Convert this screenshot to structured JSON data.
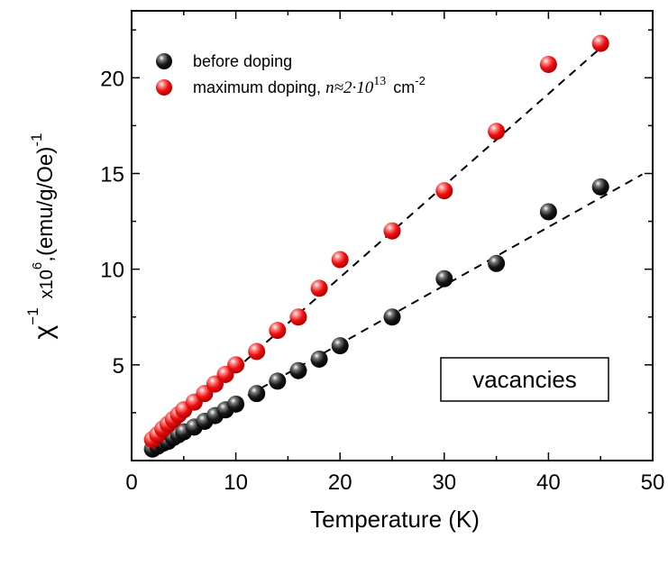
{
  "chart_data": {
    "type": "scatter",
    "xlabel": "Temperature (K)",
    "ylabel": {
      "chi": "χ",
      "chi_exp": "−1",
      "multiplier": "x10",
      "multiplier_exp": "6",
      "units": ",(emu/g/Oe)",
      "units_exp": "-1"
    },
    "xlim": [
      0,
      50
    ],
    "ylim": [
      0,
      23.5
    ],
    "xticks": [
      0,
      10,
      20,
      30,
      40,
      50
    ],
    "yticks": [
      5,
      10,
      15,
      20
    ],
    "annotation": "vacancies",
    "legend_position": "top-left",
    "series": [
      {
        "name": "before doping",
        "color": "#000000",
        "marker": "sphere",
        "x": [
          2,
          2.5,
          3,
          3.5,
          4,
          4.5,
          5,
          6,
          7,
          8,
          9,
          10,
          12,
          14,
          16,
          18,
          20,
          25,
          30,
          35,
          40,
          45
        ],
        "y": [
          0.6,
          0.75,
          0.9,
          1.0,
          1.2,
          1.35,
          1.5,
          1.75,
          2.05,
          2.35,
          2.65,
          2.95,
          3.5,
          4.15,
          4.7,
          5.3,
          6.0,
          7.5,
          9.5,
          10.3,
          13.0,
          14.3
        ]
      },
      {
        "name": "maximum doping, ",
        "name_math": "n≈2·10",
        "name_exp": "13",
        "name_units": "cm",
        "name_units_exp": "-2",
        "color": "#e60000",
        "marker": "sphere",
        "x": [
          2,
          2.5,
          3,
          3.5,
          4,
          4.5,
          5,
          6,
          7,
          8,
          9,
          10,
          12,
          14,
          16,
          18,
          20,
          25,
          30,
          35,
          40,
          45
        ],
        "y": [
          1.1,
          1.35,
          1.65,
          1.9,
          2.15,
          2.4,
          2.65,
          3.05,
          3.5,
          4.0,
          4.5,
          5.0,
          5.7,
          6.8,
          7.5,
          9.0,
          10.5,
          12.0,
          14.1,
          17.2,
          20.7,
          21.8
        ]
      }
    ],
    "fit_lines": [
      {
        "series": "before doping",
        "style": "dashed",
        "x": [
          1.5,
          49
        ],
        "y": [
          0.45,
          14.95
        ]
      },
      {
        "series": "maximum doping",
        "style": "dashed",
        "x": [
          1.5,
          45.5
        ],
        "y": [
          0.7,
          21.8
        ]
      }
    ]
  }
}
